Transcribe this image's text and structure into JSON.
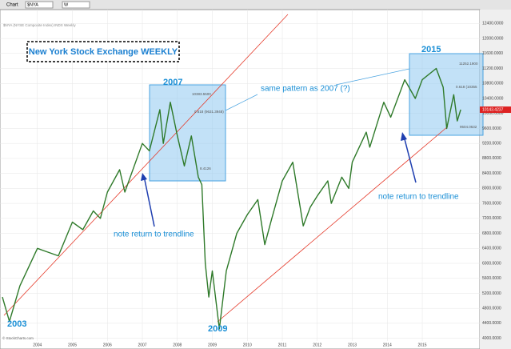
{
  "chart_data": {
    "type": "line",
    "toolbar": {
      "menu": "Chart",
      "symbol": "$NYA",
      "period": "W"
    },
    "subtitle": "$NYA (NYSE Composite Index) INDX Weekly",
    "title": "New York Stock Exchange WEEKLY",
    "annotations": {
      "y2003": "2003",
      "y2007": "2007",
      "y2009": "2009",
      "y2015": "2015",
      "pattern": "same pattern as 2007 (?)",
      "return1": "note return to trendline",
      "return2": "note return to trendline"
    },
    "box_labels": {
      "a_high": "10383.5500",
      "a_fib": "0.618 (9631.3948)",
      "a_low": "8.4126",
      "b_high": "11252.1900",
      "b_fib": "0.618 (10355",
      "b_low": "9504.0632"
    },
    "last_value": "10143.4237",
    "credit": "© StockCharts.com",
    "color": "#2f7a2a",
    "x": [
      2003.0,
      2003.2,
      2003.5,
      2004.0,
      2004.3,
      2004.6,
      2005.0,
      2005.3,
      2005.6,
      2005.8,
      2006.0,
      2006.35,
      2006.5,
      2007.0,
      2007.2,
      2007.5,
      2007.6,
      2007.8,
      2008.0,
      2008.2,
      2008.4,
      2008.6,
      2008.7,
      2008.8,
      2008.9,
      2009.0,
      2009.2,
      2009.4,
      2009.7,
      2010.0,
      2010.3,
      2010.5,
      2010.7,
      2011.0,
      2011.3,
      2011.6,
      2011.8,
      2012.0,
      2012.3,
      2012.4,
      2012.7,
      2012.9,
      2013.0,
      2013.4,
      2013.5,
      2013.9,
      2014.1,
      2014.5,
      2014.8,
      2015.0,
      2015.4,
      2015.6,
      2015.7,
      2015.9,
      2016.0,
      2016.1
    ],
    "values": [
      5100,
      4450,
      5400,
      6400,
      6300,
      6200,
      7100,
      6900,
      7400,
      7200,
      7900,
      8500,
      7900,
      9200,
      9000,
      10100,
      9200,
      10300,
      9400,
      8600,
      9400,
      8300,
      8100,
      6000,
      5100,
      5800,
      4250,
      5800,
      6800,
      7300,
      7700,
      6500,
      7200,
      8200,
      8700,
      7000,
      7500,
      7800,
      8200,
      7600,
      8300,
      8000,
      8700,
      9500,
      9100,
      10300,
      9900,
      10900,
      10400,
      10900,
      11200,
      10700,
      9600,
      10500,
      9800,
      10100
    ],
    "xlim": [
      2003.0,
      2016.6
    ],
    "xticks": [
      2004,
      2005,
      2006,
      2007,
      2008,
      2009,
      2010,
      2011,
      2012,
      2013,
      2014,
      2015
    ],
    "ylim": [
      3800,
      12600
    ],
    "yticks": [
      {
        "value": 4000,
        "label": "4000.0000"
      },
      {
        "value": 4400,
        "label": "4400.0000"
      },
      {
        "value": 4800,
        "label": "4800.0000"
      },
      {
        "value": 5200,
        "label": "5200.0000"
      },
      {
        "value": 5600,
        "label": "5600.0000"
      },
      {
        "value": 6000,
        "label": "6000.0000"
      },
      {
        "value": 6400,
        "label": "6400.0000"
      },
      {
        "value": 6800,
        "label": "6800.0000"
      },
      {
        "value": 7200,
        "label": "7200.0000"
      },
      {
        "value": 7600,
        "label": "7600.0000"
      },
      {
        "value": 8000,
        "label": "8000.0000"
      },
      {
        "value": 8400,
        "label": "8400.0000"
      },
      {
        "value": 8800,
        "label": "8800.0000"
      },
      {
        "value": 9200,
        "label": "9200.0000"
      },
      {
        "value": 9600,
        "label": "9600.0000"
      },
      {
        "value": 10000,
        "label": "10000.0000"
      },
      {
        "value": 10400,
        "label": "10400.0000"
      },
      {
        "value": 10800,
        "label": "10800.0000"
      },
      {
        "value": 11200,
        "label": "11200.0000"
      },
      {
        "value": 11600,
        "label": "11600.0000"
      },
      {
        "value": 12000,
        "label": "12000.0000"
      },
      {
        "value": 12400,
        "label": "12400.0000"
      }
    ],
    "grid": true
  }
}
